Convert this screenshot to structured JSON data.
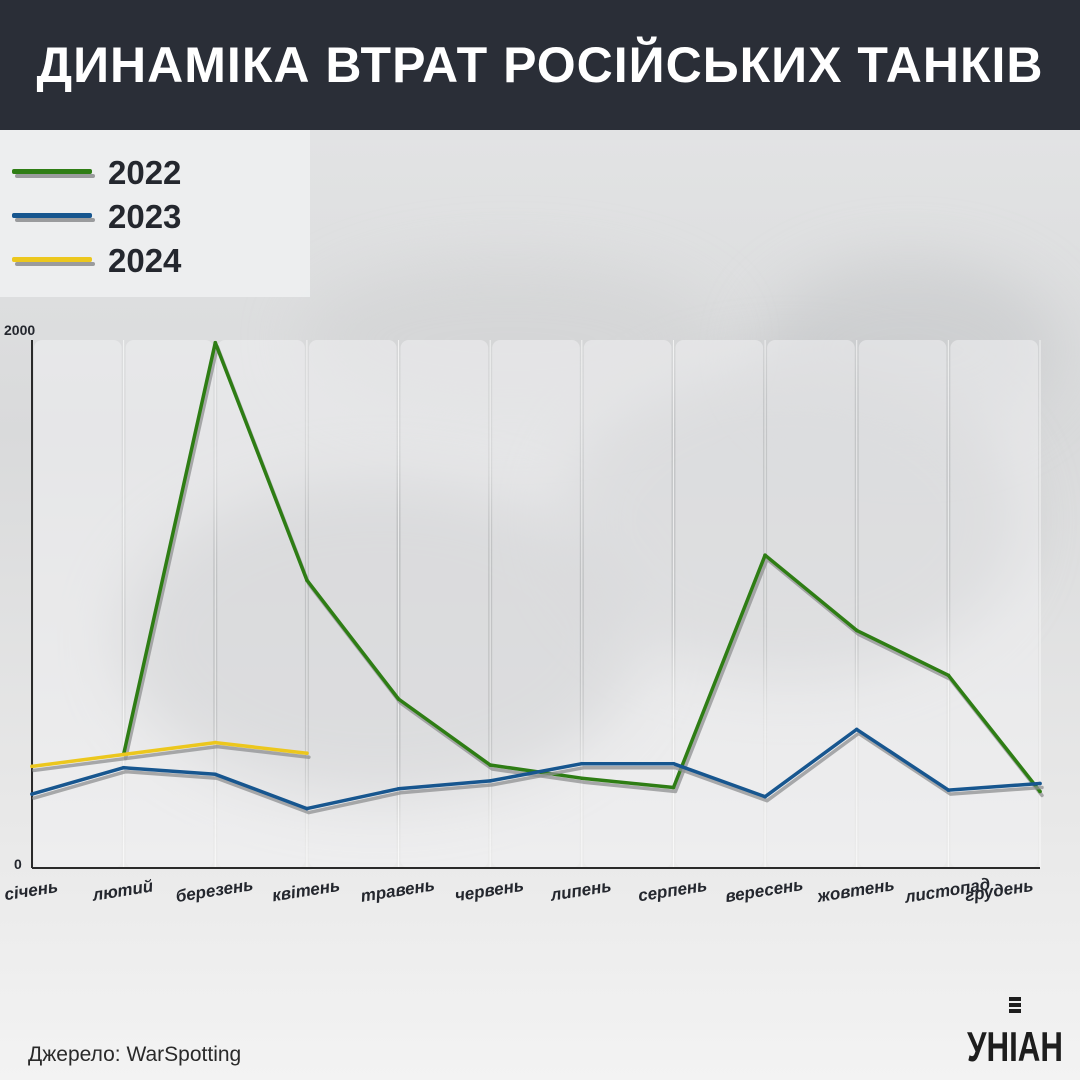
{
  "title": "ДИНАМІКА ВТРАТ РОСІЙСЬКИХ ТАНКІВ",
  "source": "Джерело: WarSpotting",
  "logo_text": "УНІАН",
  "colors": {
    "header_bg": "#2a2e37",
    "series_2022": "#2e7d14",
    "series_2023": "#17568f",
    "series_2024": "#ecc71d",
    "shadow": "#8f9092",
    "axis": "#2a2a2a"
  },
  "legend": [
    {
      "label": "2022",
      "color": "#2e7d14"
    },
    {
      "label": "2023",
      "color": "#17568f"
    },
    {
      "label": "2024",
      "color": "#ecc71d"
    }
  ],
  "chart_data": {
    "type": "line",
    "categories": [
      "січень",
      "лютий",
      "березень",
      "квітень",
      "травень",
      "червень",
      "липень",
      "серпень",
      "вересень",
      "жовтень",
      "листопад",
      "грудень"
    ],
    "ylim": [
      0,
      2000
    ],
    "yticks": [
      "0",
      "2000"
    ],
    "legend_position": "top-left",
    "grid": "vertical-columns",
    "series": [
      {
        "name": "2022",
        "color": "#2e7d14",
        "values": [
          null,
          430,
          1990,
          1090,
          640,
          390,
          340,
          305,
          1185,
          900,
          730,
          290
        ]
      },
      {
        "name": "2023",
        "color": "#17568f",
        "values": [
          280,
          380,
          355,
          225,
          300,
          330,
          395,
          395,
          270,
          525,
          295,
          320
        ]
      },
      {
        "name": "2024",
        "color": "#ecc71d",
        "values": [
          385,
          430,
          475,
          435,
          null,
          null,
          null,
          null,
          null,
          null,
          null,
          null
        ]
      }
    ]
  }
}
